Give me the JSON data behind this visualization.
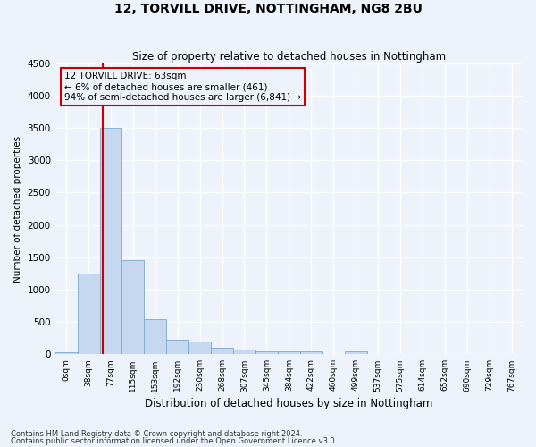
{
  "title1": "12, TORVILL DRIVE, NOTTINGHAM, NG8 2BU",
  "title2": "Size of property relative to detached houses in Nottingham",
  "xlabel": "Distribution of detached houses by size in Nottingham",
  "ylabel": "Number of detached properties",
  "bin_labels": [
    "0sqm",
    "38sqm",
    "77sqm",
    "115sqm",
    "153sqm",
    "192sqm",
    "230sqm",
    "268sqm",
    "307sqm",
    "345sqm",
    "384sqm",
    "422sqm",
    "460sqm",
    "499sqm",
    "537sqm",
    "575sqm",
    "614sqm",
    "652sqm",
    "690sqm",
    "729sqm",
    "767sqm"
  ],
  "bar_heights": [
    30,
    1250,
    3500,
    1450,
    550,
    220,
    200,
    100,
    80,
    50,
    50,
    50,
    0,
    50,
    0,
    0,
    0,
    0,
    0,
    0,
    0
  ],
  "bar_color": "#c5d8f0",
  "bar_edge_color": "#7aaad0",
  "annotation_text": "12 TORVILL DRIVE: 63sqm\n← 6% of detached houses are smaller (461)\n94% of semi-detached houses are larger (6,841) →",
  "vline_color": "#cc0000",
  "annotation_box_edge_color": "#cc0000",
  "ylim": [
    0,
    4500
  ],
  "yticks": [
    0,
    500,
    1000,
    1500,
    2000,
    2500,
    3000,
    3500,
    4000,
    4500
  ],
  "footer1": "Contains HM Land Registry data © Crown copyright and database right 2024.",
  "footer2": "Contains public sector information licensed under the Open Government Licence v3.0.",
  "background_color": "#eef2fa",
  "grid_color": "#ffffff"
}
